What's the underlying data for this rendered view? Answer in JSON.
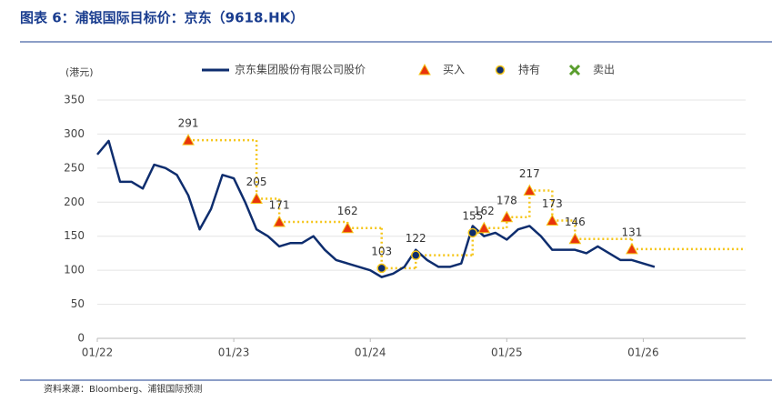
{
  "chart_data": {
    "type": "line",
    "title": "图表 6：浦银国际目标价：京东（9618.HK）",
    "y_label": "(港元)",
    "source": "资料来源：Bloomberg、浦银国际预测",
    "xlim": [
      "01/22",
      "10/26"
    ],
    "xticks": [
      "01/22",
      "01/23",
      "01/24",
      "01/25",
      "01/26"
    ],
    "ylim": [
      0,
      350
    ],
    "yticks": [
      0,
      50,
      100,
      150,
      200,
      250,
      300,
      350
    ],
    "grid": true,
    "series": [
      {
        "name": "京东集团股份有限公司股价",
        "color": "#0e2d6e",
        "x": [
          "01/22",
          "02/22",
          "03/22",
          "04/22",
          "05/22",
          "06/22",
          "07/22",
          "08/22",
          "09/22",
          "10/22",
          "11/22",
          "12/22",
          "01/23",
          "02/23",
          "03/23",
          "04/23",
          "05/23",
          "06/23",
          "07/23",
          "08/23",
          "09/23",
          "10/23",
          "11/23",
          "12/23",
          "01/24",
          "02/24",
          "03/24",
          "04/24",
          "05/24",
          "06/24",
          "07/24",
          "08/24",
          "09/24",
          "10/24",
          "11/24",
          "12/24",
          "01/25",
          "02/25",
          "03/25",
          "04/25",
          "05/25",
          "06/25",
          "07/25",
          "08/25",
          "09/25",
          "10/25",
          "11/25",
          "12/25",
          "01/26",
          "02/26"
        ],
        "values": [
          270,
          290,
          230,
          230,
          220,
          255,
          250,
          240,
          210,
          160,
          190,
          240,
          235,
          200,
          160,
          150,
          135,
          140,
          140,
          150,
          130,
          115,
          110,
          105,
          100,
          90,
          95,
          105,
          130,
          115,
          105,
          105,
          110,
          165,
          150,
          155,
          145,
          160,
          165,
          150,
          130,
          130,
          130,
          125,
          135,
          125,
          115,
          115,
          110,
          105
        ]
      }
    ],
    "markers": [
      {
        "name": "买入",
        "color": "#e8340c"
      },
      {
        "name": "持有",
        "color": "#0e2d6e"
      },
      {
        "name": "卖出",
        "color": "#5a9e2e"
      }
    ],
    "target_color": "#f5c518",
    "targets": {
      "x": [
        "09/22",
        "03/23",
        "05/23",
        "11/23",
        "02/24",
        "05/24",
        "10/24",
        "11/24",
        "01/25",
        "03/25",
        "05/25",
        "07/25",
        "12/25"
      ],
      "values": [
        291,
        205,
        171,
        162,
        103,
        122,
        155,
        162,
        178,
        217,
        173,
        146,
        131
      ],
      "rating": [
        "买入",
        "买入",
        "买入",
        "买入",
        "持有",
        "持有",
        "持有",
        "买入",
        "买入",
        "买入",
        "买入",
        "买入",
        "买入"
      ]
    }
  }
}
